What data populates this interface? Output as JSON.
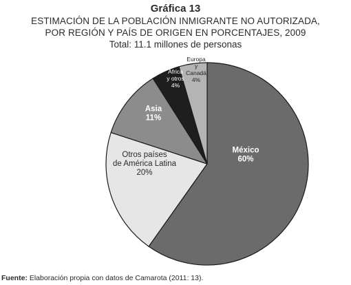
{
  "figure_label": "Gráfica 13",
  "title_lines": [
    "ESTIMACIÓN DE LA POBLACIÓN INMIGRANTE NO AUTORIZADA,",
    "POR REGIÓN Y PAÍS DE ORIGEN EN PORCENTAJES, 2009"
  ],
  "subtitle": "Total: 11.1 millones de personas",
  "source": {
    "label": "Fuente:",
    "text": " Elaboración propia con datos de Camarota (2011: 13)."
  },
  "chart_data": {
    "type": "pie",
    "title": "ESTIMACIÓN DE LA POBLACIÓN INMIGRANTE NO AUTORIZADA, POR REGIÓN Y PAÍS DE ORIGEN EN PORCENTAJES, 2009",
    "subtitle": "Total: 11.1 millones de personas",
    "slices": [
      {
        "label_lines": [
          "México"
        ],
        "value_label": "60%",
        "value": 59.8,
        "color": "#6b6b6b",
        "text_color": "#ffffff",
        "bold": true
      },
      {
        "label_lines": [
          "Otros países",
          "de América Latina"
        ],
        "value_label": "20%",
        "value": 20.2,
        "color": "#e6e6e6",
        "text_color": "#2a2a2a",
        "bold": false
      },
      {
        "label_lines": [
          "Asia"
        ],
        "value_label": "11%",
        "value": 11,
        "color": "#8c8c8c",
        "text_color": "#ffffff",
        "bold": true
      },
      {
        "label_lines": [
          "África",
          "y otros"
        ],
        "value_label": "4%",
        "value": 4.5,
        "color": "#1e1e1e",
        "text_color": "#ffffff",
        "bold": false
      },
      {
        "label_lines": [
          "Europa",
          "y",
          "Canadá"
        ],
        "value_label": "4%",
        "value": 4.5,
        "color": "#b4b4b4",
        "text_color": "#222222",
        "bold": false
      }
    ]
  }
}
